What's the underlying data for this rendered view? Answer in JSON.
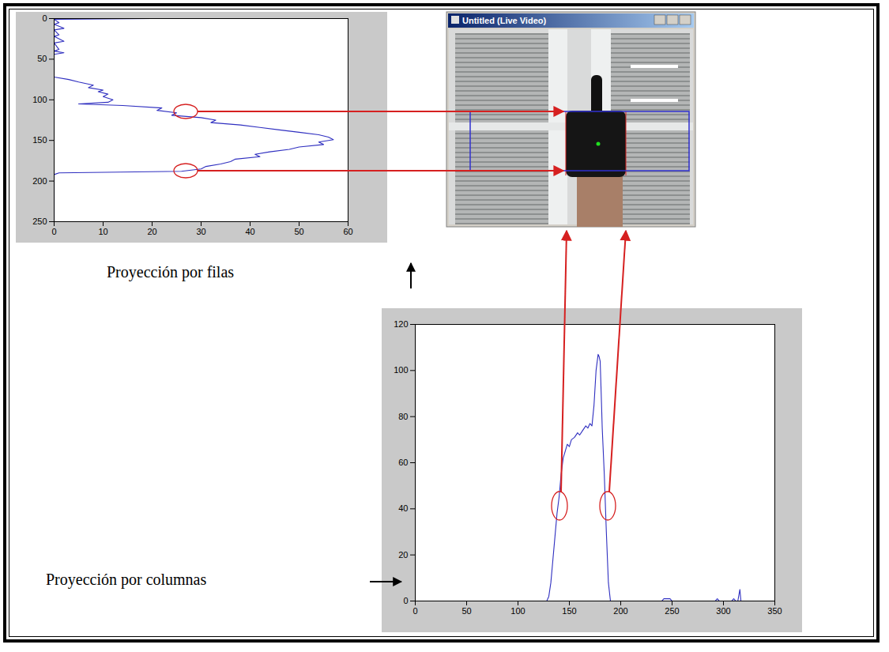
{
  "window": {
    "title": "Untitled (Live Video)"
  },
  "chart_data": [
    {
      "type": "line",
      "title": "Proyección por filas",
      "orientation": "horizontal",
      "color": "#2f2fc0",
      "x": [
        0,
        1,
        5,
        7,
        12,
        14,
        20,
        22,
        28,
        30,
        38,
        40,
        42,
        44,
        72,
        75,
        78,
        82,
        85,
        88,
        90,
        93,
        96,
        100,
        103,
        105,
        107,
        110,
        113,
        116,
        119,
        122,
        125,
        128,
        131,
        134,
        137,
        140,
        143,
        146,
        149,
        152,
        155,
        158,
        161,
        164,
        167,
        170,
        173,
        176,
        179,
        182,
        185,
        188,
        190,
        192,
        250
      ],
      "values": [
        20,
        0,
        1,
        0,
        2,
        0,
        1,
        0,
        2,
        0,
        1,
        0,
        2,
        0,
        0,
        3,
        5,
        8,
        7,
        10,
        9,
        11,
        10,
        12,
        11,
        5,
        14,
        22,
        21,
        25,
        24,
        30,
        33,
        32,
        38,
        42,
        46,
        50,
        54,
        56,
        57,
        54,
        55,
        50,
        48,
        44,
        41,
        42,
        37,
        36,
        34,
        31,
        30,
        26,
        1,
        0,
        0
      ],
      "xlim": [
        0,
        250
      ],
      "xticks": [
        0,
        50,
        100,
        150,
        200,
        250
      ],
      "ylim": [
        0,
        60
      ],
      "yticks": [
        0,
        10,
        20,
        30,
        40,
        50,
        60
      ]
    },
    {
      "type": "line",
      "title": "Proyección por columnas",
      "color": "#2f2fc0",
      "x": [
        0,
        128,
        130,
        132,
        134,
        136,
        138,
        140,
        142,
        144,
        146,
        148,
        150,
        152,
        155,
        158,
        160,
        163,
        166,
        168,
        170,
        172,
        174,
        176,
        178,
        179,
        180,
        181,
        182,
        184,
        186,
        188,
        190,
        240,
        242,
        248,
        250,
        292,
        294,
        296,
        308,
        310,
        312,
        314,
        316,
        317,
        318
      ],
      "values": [
        0,
        0,
        2,
        8,
        18,
        28,
        38,
        45,
        55,
        62,
        65,
        68,
        67,
        70,
        71,
        73,
        72,
        74,
        76,
        75,
        77,
        76,
        85,
        100,
        107,
        106,
        104,
        90,
        75,
        55,
        30,
        8,
        0,
        0,
        1,
        1,
        0,
        0,
        1,
        0,
        0,
        1,
        0,
        0,
        5,
        0,
        0
      ],
      "xlim": [
        0,
        350
      ],
      "xticks": [
        0,
        50,
        100,
        150,
        200,
        250,
        300,
        350
      ],
      "ylim": [
        0,
        120
      ],
      "yticks": [
        0,
        20,
        40,
        60,
        80,
        100,
        120
      ]
    }
  ]
}
